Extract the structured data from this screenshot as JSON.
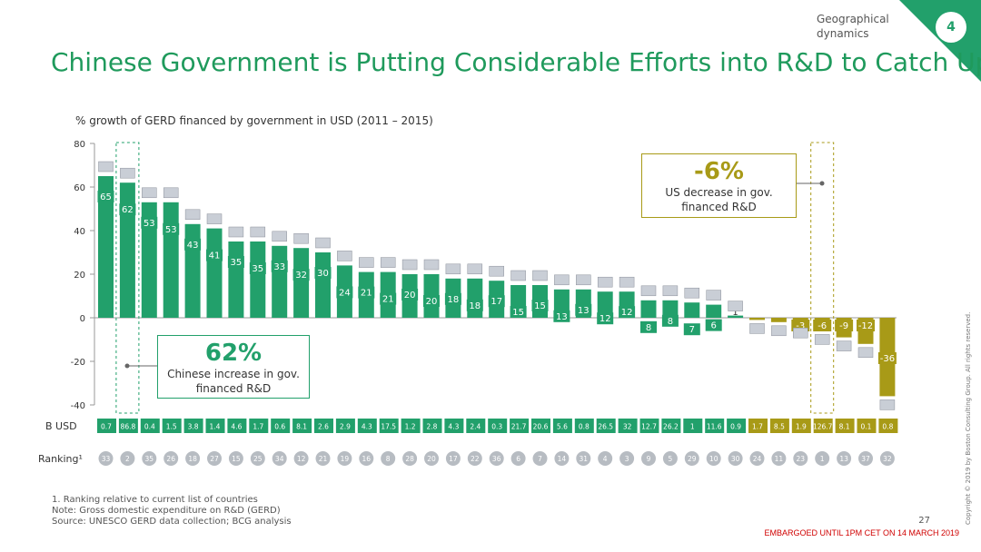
{
  "header": {
    "section_label": "Geographical dynamics",
    "page_badge": "4",
    "title": "Chinese Government is Putting Considerable Efforts into R&D to Catch Up"
  },
  "callouts": {
    "china": {
      "value": "62%",
      "text": "Chinese increase in gov. financed R&D"
    },
    "us": {
      "value": "-6%",
      "text": "US decrease in gov. financed R&D"
    }
  },
  "footer": {
    "footnote1": "1. Ranking relative to current list of countries",
    "note": "Note: Gross domestic expenditure on R&D (GERD)",
    "source": "Source:  UNESCO GERD data collection;  BCG analysis",
    "page_number": "27",
    "embargo": "EMBARGOED UNTIL 1PM CET ON 14 MARCH 2019",
    "copyright": "Copyright © 2019 by Boston Consulting Group. All rights reserved."
  },
  "colors": {
    "green": "#22a06b",
    "olive": "#a89a17",
    "text": "#333333"
  },
  "chart_data": {
    "type": "bar",
    "title": "% growth of GERD financed by government in USD (2011 – 2015)",
    "ylabel": "",
    "xlabel": "",
    "ylim": [
      -40,
      80
    ],
    "yticks": [
      80,
      60,
      40,
      20,
      0,
      -20,
      -40
    ],
    "values": [
      65,
      62,
      53,
      53,
      43,
      41,
      35,
      35,
      33,
      32,
      30,
      24,
      21,
      21,
      20,
      20,
      18,
      18,
      17,
      15,
      15,
      13,
      13,
      12,
      12,
      8,
      8,
      7,
      6,
      1,
      -1,
      -2,
      -3,
      -6,
      -9,
      -12,
      -36
    ],
    "value_labels": [
      "65",
      "62",
      "53",
      "53",
      "43",
      "41",
      "35",
      "35",
      "33",
      "32",
      "30",
      "24",
      "21",
      "21",
      "20",
      "20",
      "18",
      "18",
      "17",
      "15",
      "15",
      "13",
      "13",
      "12",
      "12",
      "8",
      "8",
      "7",
      "6",
      "1",
      "-1",
      "-2",
      "-3",
      "-6",
      "-9",
      "-12",
      "-36"
    ],
    "gerd_row_label": "B USD",
    "gerd_busd": [
      "0.7",
      "86.8",
      "0.4",
      "1.5",
      "3.8",
      "1.4",
      "4.6",
      "1.7",
      "0.6",
      "8.1",
      "2.6",
      "2.9",
      "4.3",
      "17.5",
      "1.2",
      "2.8",
      "4.3",
      "2.4",
      "0.3",
      "21.7",
      "20.6",
      "5.6",
      "0.8",
      "26.5",
      "32",
      "12.7",
      "26.2",
      "1",
      "11.6",
      "0.9",
      "1.7",
      "8.5",
      "1.9",
      "126.7",
      "8.1",
      "0.1",
      "0.8"
    ],
    "ranking_label": "Ranking¹",
    "ranking": [
      "33",
      "2",
      "35",
      "26",
      "18",
      "27",
      "15",
      "25",
      "34",
      "12",
      "21",
      "19",
      "16",
      "8",
      "28",
      "20",
      "17",
      "22",
      "36",
      "6",
      "7",
      "14",
      "31",
      "4",
      "3",
      "9",
      "5",
      "29",
      "10",
      "30",
      "24",
      "11",
      "23",
      "1",
      "13",
      "37",
      "32"
    ],
    "highlight": [
      "China",
      "United States"
    ]
  }
}
